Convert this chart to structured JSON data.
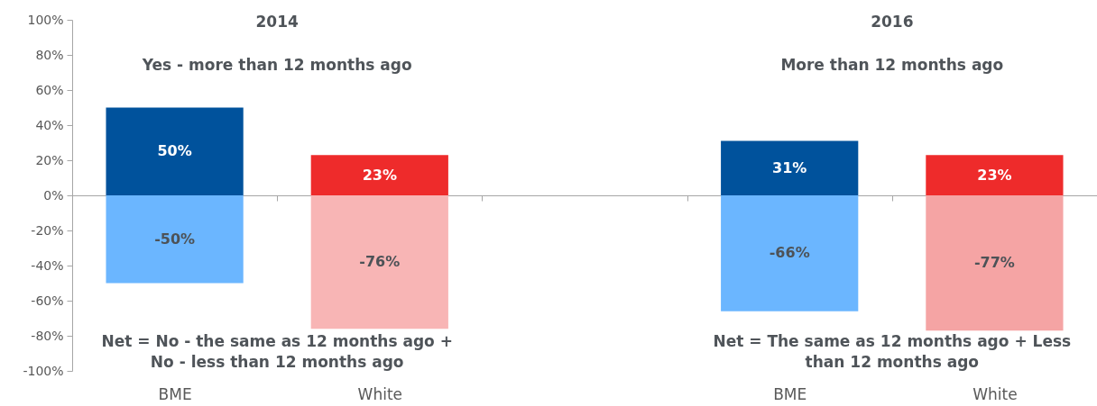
{
  "chart_data": {
    "type": "bar",
    "categories": [
      "BME",
      "White",
      null,
      "BME",
      "White"
    ],
    "stacked": true,
    "series": [
      {
        "colors": [
          "#00529c",
          "#ee2b2b",
          null,
          "#00529c",
          "#ee2b2b"
        ],
        "values": [
          50,
          23,
          null,
          31,
          23
        ],
        "value_labels": [
          "50%",
          "23%",
          null,
          "31%",
          "23%"
        ]
      },
      {
        "colors": [
          "#6bb6ff",
          "#f8b5b5",
          null,
          "#6bb6ff",
          "#f5a4a4"
        ],
        "values": [
          -50,
          -76,
          null,
          -66,
          -77
        ],
        "value_labels": [
          "-50%",
          "-76%",
          null,
          "-66%",
          "-77%"
        ]
      }
    ],
    "ylim": [
      -100,
      100
    ],
    "yticks": [
      {
        "value": -100,
        "label": "-100%"
      },
      {
        "value": -80,
        "label": "-80%"
      },
      {
        "value": -60,
        "label": "-60%"
      },
      {
        "value": -40,
        "label": "-40%"
      },
      {
        "value": -20,
        "label": "-20%"
      },
      {
        "value": 0,
        "label": "0%"
      },
      {
        "value": 20,
        "label": "20%"
      },
      {
        "value": 40,
        "label": "40%"
      },
      {
        "value": 60,
        "label": "60%"
      },
      {
        "value": 80,
        "label": "80%"
      },
      {
        "value": 100,
        "label": "100%"
      }
    ],
    "annotations": [
      "2014",
      "Yes - more than 12 months ago",
      "Net = No - the same as 12 months ago + No  - less than 12 months ago",
      "2016",
      "More than 12 months ago",
      "Net = The same as 12 months ago + Less than 12 months ago"
    ]
  }
}
